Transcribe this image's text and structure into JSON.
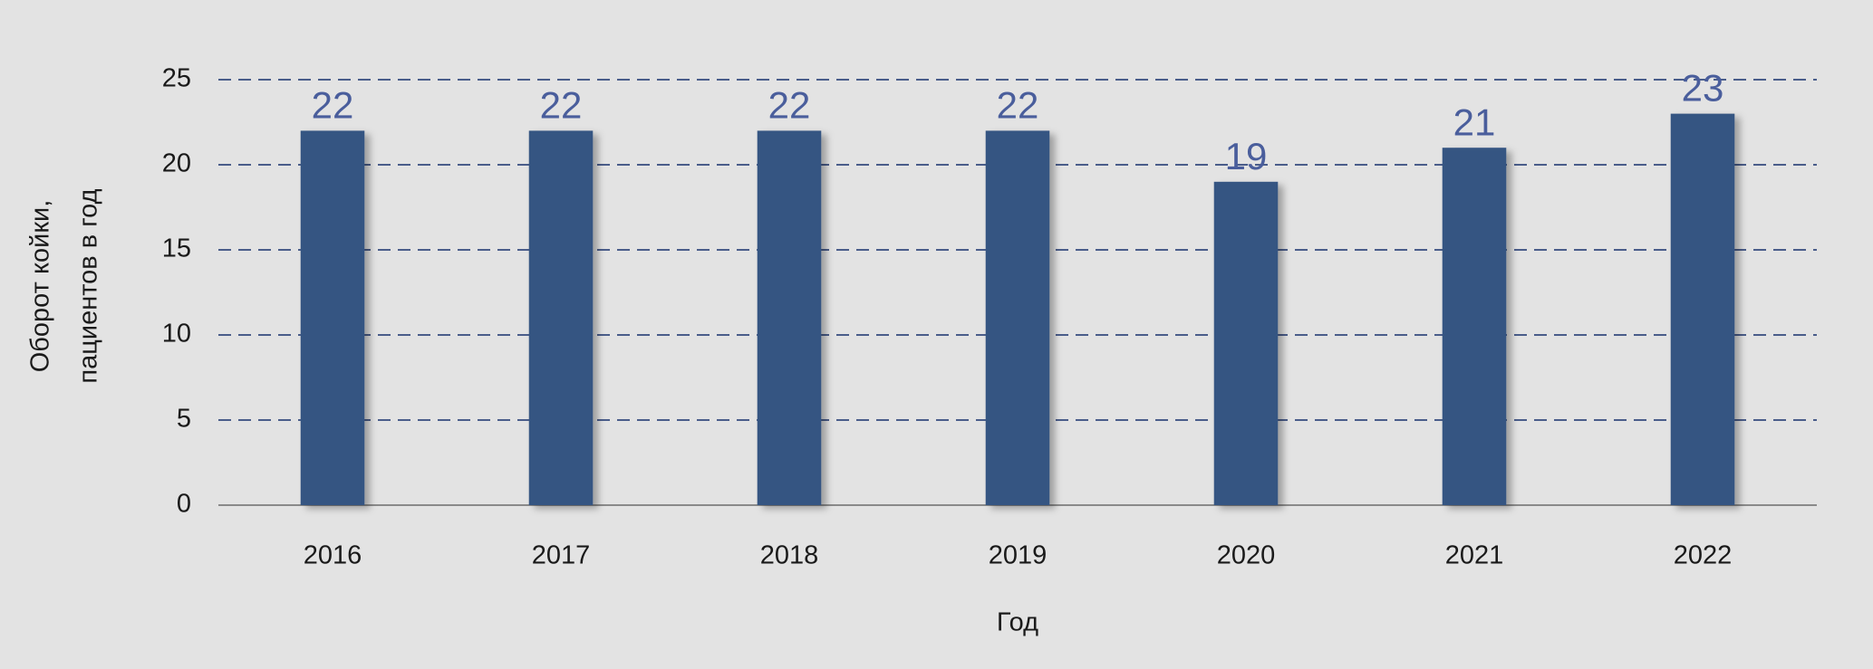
{
  "chart_data": {
    "type": "bar",
    "categories": [
      "2016",
      "2017",
      "2018",
      "2019",
      "2020",
      "2021",
      "2022"
    ],
    "values": [
      22,
      22,
      22,
      22,
      19,
      21,
      23
    ],
    "color": "#345482",
    "ylim": [
      0,
      25
    ],
    "yticks": [
      0,
      5,
      10,
      15,
      20,
      25
    ],
    "grid": true,
    "xlabel": "Год",
    "ylabel": [
      "Оборот койки,",
      "пациентов в год"
    ]
  }
}
